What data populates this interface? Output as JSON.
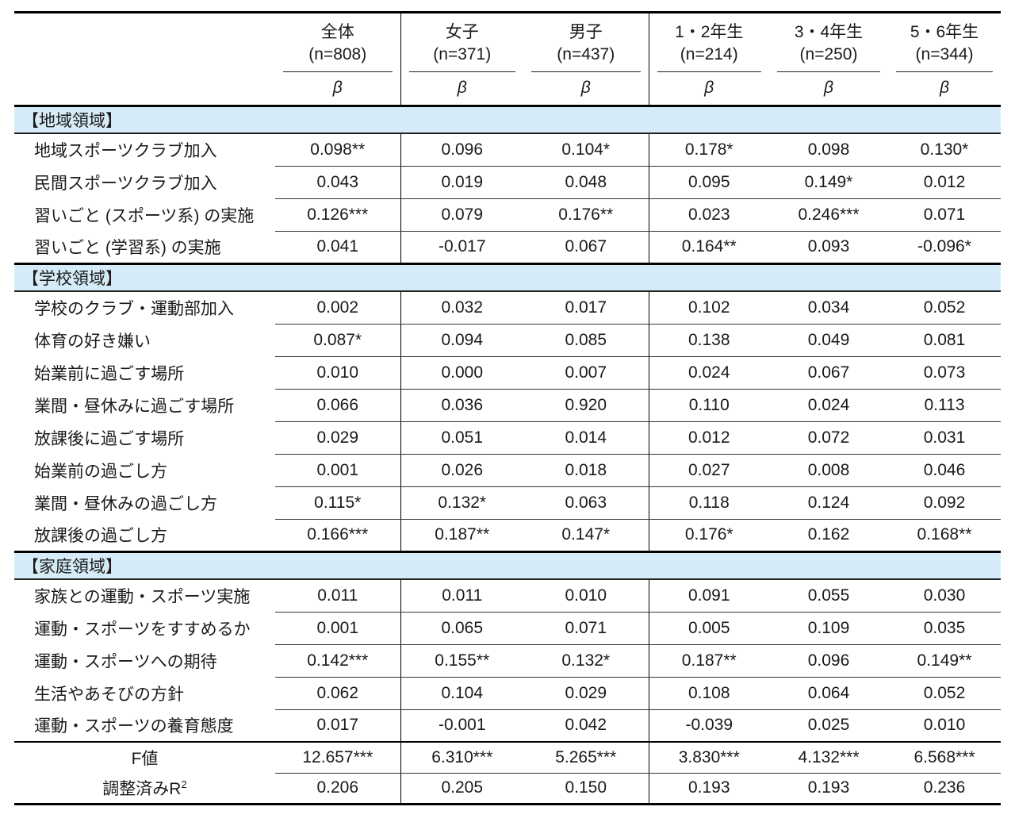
{
  "colors": {
    "band_bg": "#d5ecf8",
    "rule_thick": "#000000",
    "rule_thin": "#333333",
    "text": "#1a1a1a"
  },
  "chart_data": {
    "type": "table",
    "statistic_label": "β",
    "columns": [
      {
        "label": "全体",
        "n": "(n=808)"
      },
      {
        "label": "女子",
        "n": "(n=371)"
      },
      {
        "label": "男子",
        "n": "(n=437)"
      },
      {
        "label": "1・2年生",
        "n": "(n=214)"
      },
      {
        "label": "3・4年生",
        "n": "(n=250)"
      },
      {
        "label": "5・6年生",
        "n": "(n=344)"
      }
    ],
    "sections": [
      {
        "title": "【地域領域】",
        "rows": [
          {
            "label": "地域スポーツクラブ加入",
            "values": [
              "0.098**",
              "0.096",
              "0.104*",
              "0.178*",
              "0.098",
              "0.130*"
            ]
          },
          {
            "label": "民間スポーツクラブ加入",
            "values": [
              "0.043",
              "0.019",
              "0.048",
              "0.095",
              "0.149*",
              "0.012"
            ]
          },
          {
            "label": "習いごと (スポーツ系) の実施",
            "values": [
              "0.126***",
              "0.079",
              "0.176**",
              "0.023",
              "0.246***",
              "0.071"
            ]
          },
          {
            "label": "習いごと (学習系) の実施",
            "values": [
              "0.041",
              "-0.017",
              "0.067",
              "0.164**",
              "0.093",
              "-0.096*"
            ]
          }
        ]
      },
      {
        "title": "【学校領域】",
        "rows": [
          {
            "label": "学校のクラブ・運動部加入",
            "values": [
              "0.002",
              "0.032",
              "0.017",
              "0.102",
              "0.034",
              "0.052"
            ]
          },
          {
            "label": "体育の好き嫌い",
            "values": [
              "0.087*",
              "0.094",
              "0.085",
              "0.138",
              "0.049",
              "0.081"
            ]
          },
          {
            "label": "始業前に過ごす場所",
            "values": [
              "0.010",
              "0.000",
              "0.007",
              "0.024",
              "0.067",
              "0.073"
            ]
          },
          {
            "label": "業間・昼休みに過ごす場所",
            "values": [
              "0.066",
              "0.036",
              "0.920",
              "0.110",
              "0.024",
              "0.113"
            ]
          },
          {
            "label": "放課後に過ごす場所",
            "values": [
              "0.029",
              "0.051",
              "0.014",
              "0.012",
              "0.072",
              "0.031"
            ]
          },
          {
            "label": "始業前の過ごし方",
            "values": [
              "0.001",
              "0.026",
              "0.018",
              "0.027",
              "0.008",
              "0.046"
            ]
          },
          {
            "label": "業間・昼休みの過ごし方",
            "values": [
              "0.115*",
              "0.132*",
              "0.063",
              "0.118",
              "0.124",
              "0.092"
            ]
          },
          {
            "label": "放課後の過ごし方",
            "values": [
              "0.166***",
              "0.187**",
              "0.147*",
              "0.176*",
              "0.162",
              "0.168**"
            ]
          }
        ]
      },
      {
        "title": "【家庭領域】",
        "rows": [
          {
            "label": "家族との運動・スポーツ実施",
            "values": [
              "0.011",
              "0.011",
              "0.010",
              "0.091",
              "0.055",
              "0.030"
            ]
          },
          {
            "label": "運動・スポーツをすすめるか",
            "values": [
              "0.001",
              "0.065",
              "0.071",
              "0.005",
              "0.109",
              "0.035"
            ]
          },
          {
            "label": "運動・スポーツへの期待",
            "values": [
              "0.142***",
              "0.155**",
              "0.132*",
              "0.187**",
              "0.096",
              "0.149**"
            ]
          },
          {
            "label": "生活やあそびの方針",
            "values": [
              "0.062",
              "0.104",
              "0.029",
              "0.108",
              "0.064",
              "0.052"
            ]
          },
          {
            "label": "運動・スポーツの養育態度",
            "values": [
              "0.017",
              "-0.001",
              "0.042",
              "-0.039",
              "0.025",
              "0.010"
            ]
          }
        ]
      }
    ],
    "footer_rows": [
      {
        "label": "F値",
        "sup": "",
        "values": [
          "12.657***",
          "6.310***",
          "5.265***",
          "3.830***",
          "4.132***",
          "6.568***"
        ]
      },
      {
        "label": "調整済みR",
        "sup": "2",
        "values": [
          "0.206",
          "0.205",
          "0.150",
          "0.193",
          "0.193",
          "0.236"
        ]
      }
    ]
  }
}
